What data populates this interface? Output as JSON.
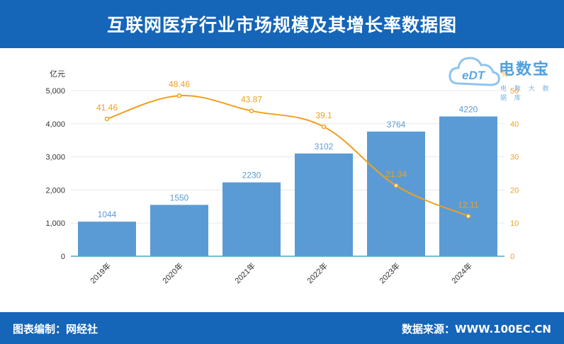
{
  "header": {
    "title": "互联网医疗行业市场规模及其增长率数据图"
  },
  "footer": {
    "left": "图表编制：网经社",
    "right": "数据来源：WWW.100EC.CN"
  },
  "logo": {
    "title": "电数宝",
    "subtitle": "电 数 大 数 据 库",
    "mark": "eDT"
  },
  "colors": {
    "bar": "#5b9bd5",
    "line": "#f0a020",
    "band": "#1565b8",
    "bar_label": "#5b9bd5",
    "line_label": "#f0a020"
  },
  "chart_data": {
    "type": "bar",
    "categories": [
      "2019年",
      "2020年",
      "2021年",
      "2022年",
      "2023年",
      "2024年"
    ],
    "series": [
      {
        "values": [
          1044,
          1550,
          2230,
          3102,
          3764,
          4220
        ],
        "axis": "left"
      },
      {
        "type": "line",
        "values": [
          41.46,
          48.46,
          43.87,
          39.1,
          21.34,
          12.11
        ],
        "axis": "right",
        "smooth": true
      }
    ],
    "left_axis": {
      "unit": "亿元",
      "ylim": [
        0,
        5000
      ],
      "ticks": [
        "0",
        "1,000",
        "2,000",
        "3,000",
        "4,000",
        "5,000"
      ]
    },
    "right_axis": {
      "unit": "%",
      "ylim": [
        0,
        50
      ],
      "ticks": [
        "0",
        "10",
        "20",
        "30",
        "40",
        "50"
      ]
    },
    "bar_labels": [
      "1044",
      "1550",
      "2230",
      "3102",
      "3764",
      "4220"
    ],
    "line_labels": [
      "41.46",
      "48.46",
      "43.87",
      "39.1",
      "21.34",
      "12.11"
    ],
    "grid": true
  }
}
